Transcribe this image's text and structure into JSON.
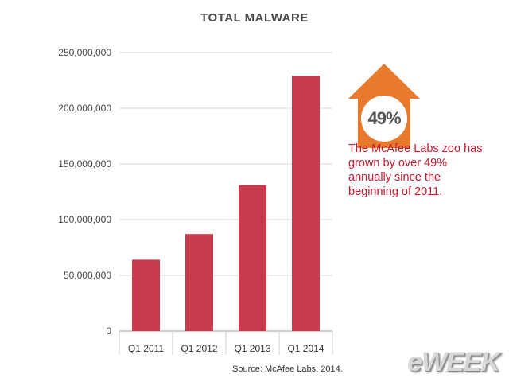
{
  "chart_data": {
    "type": "bar",
    "title": "TOTAL MALWARE",
    "categories": [
      "Q1 2011",
      "Q1 2012",
      "Q1 2013",
      "Q1 2014"
    ],
    "values": [
      64000000,
      87000000,
      131000000,
      229000000
    ],
    "ylim": [
      0,
      250000000
    ],
    "yticks": [
      0,
      50000000,
      100000000,
      150000000,
      200000000,
      250000000
    ],
    "ytick_labels": [
      "0",
      "50,000,000",
      "100,000,000",
      "150,000,000",
      "200,000,000",
      "250,000,000"
    ],
    "grid": true,
    "bar_color": "#c83c4e"
  },
  "callout": {
    "percent": "49%",
    "text": "The McAfee Labs zoo has grown by over 49% annually since the beginning of 2011.",
    "arrow_color": "#e87a2e",
    "text_color": "#c8192e"
  },
  "source": "Source: McAfee Labs. 2014.",
  "brand": "eWEEK"
}
